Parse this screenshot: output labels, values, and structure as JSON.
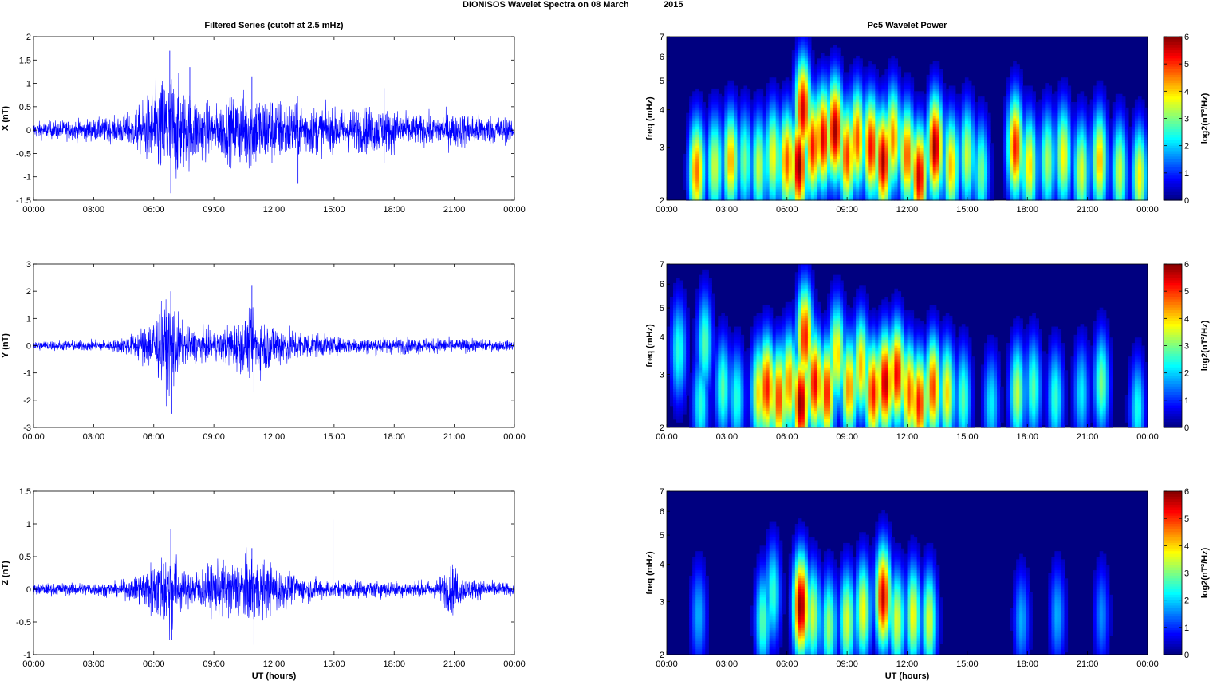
{
  "figure": {
    "title_left": "DIONISOS Wavelet Spectra on 08 March",
    "title_right": "2015"
  },
  "chart_data": [
    {
      "type": "line",
      "panel": "X time series",
      "title": "Filtered Series (cutoff at 2.5 mHz)",
      "ylabel": "X (nT)",
      "xlabel": "",
      "xlim": [
        0,
        24
      ],
      "ylim": [
        -1.5,
        2
      ],
      "xticks": [
        "00:00",
        "03:00",
        "06:00",
        "09:00",
        "12:00",
        "15:00",
        "18:00",
        "21:00",
        "00:00"
      ],
      "yticks": [
        "-1.5",
        "-1",
        "-0.5",
        "0",
        "0.5",
        "1",
        "1.5",
        "2"
      ],
      "color": "#0000ff",
      "amplitude_envelope": [
        {
          "t": 0,
          "a": 0.2
        },
        {
          "t": 2,
          "a": 0.25
        },
        {
          "t": 4,
          "a": 0.3
        },
        {
          "t": 5,
          "a": 0.45
        },
        {
          "t": 6.8,
          "a": 1.5
        },
        {
          "t": 7.5,
          "a": 1.0
        },
        {
          "t": 9,
          "a": 0.6
        },
        {
          "t": 10.8,
          "a": 1.0
        },
        {
          "t": 13,
          "a": 0.7
        },
        {
          "t": 15,
          "a": 0.5
        },
        {
          "t": 17.5,
          "a": 0.6
        },
        {
          "t": 19,
          "a": 0.35
        },
        {
          "t": 21,
          "a": 0.45
        },
        {
          "t": 24,
          "a": 0.3
        }
      ],
      "spikes": [
        {
          "t": 6.8,
          "y": 1.7
        },
        {
          "t": 6.85,
          "y": -1.35
        },
        {
          "t": 7.8,
          "y": 1.35
        },
        {
          "t": 10.9,
          "y": 1.15
        },
        {
          "t": 13.2,
          "y": -1.15
        },
        {
          "t": 17.5,
          "y": 0.9
        },
        {
          "t": 17.5,
          "y": -0.7
        }
      ]
    },
    {
      "type": "line",
      "panel": "Y time series",
      "title": "",
      "ylabel": "Y (nT)",
      "xlabel": "",
      "xlim": [
        0,
        24
      ],
      "ylim": [
        -3,
        3
      ],
      "xticks": [
        "00:00",
        "03:00",
        "06:00",
        "09:00",
        "12:00",
        "15:00",
        "18:00",
        "21:00",
        "00:00"
      ],
      "yticks": [
        "-3",
        "-2",
        "-1",
        "0",
        "1",
        "2",
        "3"
      ],
      "color": "#0000ff",
      "amplitude_envelope": [
        {
          "t": 0,
          "a": 0.2
        },
        {
          "t": 4,
          "a": 0.25
        },
        {
          "t": 5,
          "a": 0.5
        },
        {
          "t": 6.9,
          "a": 2.0
        },
        {
          "t": 7.5,
          "a": 0.8
        },
        {
          "t": 9,
          "a": 0.6
        },
        {
          "t": 10.9,
          "a": 1.3
        },
        {
          "t": 13,
          "a": 0.7
        },
        {
          "t": 15,
          "a": 0.35
        },
        {
          "t": 18,
          "a": 0.35
        },
        {
          "t": 21,
          "a": 0.3
        },
        {
          "t": 24,
          "a": 0.2
        }
      ],
      "spikes": [
        {
          "t": 6.85,
          "y": 2.0
        },
        {
          "t": 6.9,
          "y": -2.5
        },
        {
          "t": 10.9,
          "y": 2.2
        },
        {
          "t": 11.0,
          "y": -1.7
        }
      ]
    },
    {
      "type": "line",
      "panel": "Z time series",
      "title": "",
      "ylabel": "Z (nT)",
      "xlabel": "UT (hours)",
      "xlim": [
        0,
        24
      ],
      "ylim": [
        -1,
        1.5
      ],
      "xticks": [
        "00:00",
        "03:00",
        "06:00",
        "09:00",
        "12:00",
        "15:00",
        "18:00",
        "21:00",
        "00:00"
      ],
      "yticks": [
        "-1",
        "-0.5",
        "0",
        "0.5",
        "1",
        "1.5"
      ],
      "color": "#0000ff",
      "amplitude_envelope": [
        {
          "t": 0,
          "a": 0.1
        },
        {
          "t": 4,
          "a": 0.12
        },
        {
          "t": 5,
          "a": 0.2
        },
        {
          "t": 6.9,
          "a": 0.8
        },
        {
          "t": 7.5,
          "a": 0.3
        },
        {
          "t": 10.9,
          "a": 0.6
        },
        {
          "t": 13,
          "a": 0.25
        },
        {
          "t": 15,
          "a": 0.15
        },
        {
          "t": 20,
          "a": 0.15
        },
        {
          "t": 20.9,
          "a": 0.45
        },
        {
          "t": 21.5,
          "a": 0.2
        },
        {
          "t": 24,
          "a": 0.1
        }
      ],
      "spikes": [
        {
          "t": 6.85,
          "y": 0.92
        },
        {
          "t": 6.9,
          "y": -0.78
        },
        {
          "t": 10.9,
          "y": 0.63
        },
        {
          "t": 11.0,
          "y": -0.85
        },
        {
          "t": 14.95,
          "y": 1.07
        }
      ]
    },
    {
      "type": "heatmap",
      "panel": "X wavelet power",
      "title": "Pc5 Wavelet Power",
      "ylabel": "freq (mHz)",
      "xlabel": "",
      "xlim": [
        0,
        24
      ],
      "ylim": [
        2,
        7
      ],
      "y_scale": "log",
      "xticks": [
        "00:00",
        "03:00",
        "06:00",
        "09:00",
        "12:00",
        "15:00",
        "18:00",
        "21:00",
        "00:00"
      ],
      "yticks": [
        "2",
        "3",
        "4",
        "5",
        "6",
        "7"
      ],
      "colorbar": {
        "label": "log2(nT²/Hz)",
        "range": [
          0,
          6
        ],
        "ticks": [
          "0",
          "1",
          "2",
          "3",
          "4",
          "5",
          "6"
        ],
        "colormap": "jet"
      },
      "blobs": [
        {
          "t": 1.5,
          "f": 2.5,
          "p": 4.6
        },
        {
          "t": 2.4,
          "f": 2.6,
          "p": 3.5
        },
        {
          "t": 3.2,
          "f": 2.7,
          "p": 4.3
        },
        {
          "t": 3.9,
          "f": 2.7,
          "p": 3.0
        },
        {
          "t": 4.6,
          "f": 2.6,
          "p": 3.5
        },
        {
          "t": 5.3,
          "f": 2.8,
          "p": 3.8
        },
        {
          "t": 6.0,
          "f": 2.7,
          "p": 4.8
        },
        {
          "t": 6.6,
          "f": 2.6,
          "p": 6.0
        },
        {
          "t": 6.8,
          "f": 4.0,
          "p": 5.5
        },
        {
          "t": 7.3,
          "f": 3.0,
          "p": 5.2
        },
        {
          "t": 7.8,
          "f": 3.2,
          "p": 5.5
        },
        {
          "t": 8.4,
          "f": 3.4,
          "p": 5.8
        },
        {
          "t": 9.0,
          "f": 2.8,
          "p": 5.0
        },
        {
          "t": 9.5,
          "f": 3.2,
          "p": 4.8
        },
        {
          "t": 10.2,
          "f": 3.0,
          "p": 5.3
        },
        {
          "t": 10.8,
          "f": 2.7,
          "p": 5.8
        },
        {
          "t": 11.3,
          "f": 3.2,
          "p": 4.5
        },
        {
          "t": 12.0,
          "f": 2.8,
          "p": 4.8
        },
        {
          "t": 12.6,
          "f": 2.4,
          "p": 5.6
        },
        {
          "t": 13.4,
          "f": 3.0,
          "p": 5.9
        },
        {
          "t": 14.2,
          "f": 2.6,
          "p": 4.2
        },
        {
          "t": 15.0,
          "f": 2.8,
          "p": 3.5
        },
        {
          "t": 15.7,
          "f": 2.5,
          "p": 3.0
        },
        {
          "t": 17.4,
          "f": 3.0,
          "p": 5.2
        },
        {
          "t": 18.1,
          "f": 2.6,
          "p": 4.0
        },
        {
          "t": 19.0,
          "f": 2.7,
          "p": 3.3
        },
        {
          "t": 19.8,
          "f": 2.8,
          "p": 3.8
        },
        {
          "t": 20.7,
          "f": 2.5,
          "p": 3.6
        },
        {
          "t": 21.6,
          "f": 2.7,
          "p": 4.2
        },
        {
          "t": 22.6,
          "f": 2.5,
          "p": 3.5
        },
        {
          "t": 23.6,
          "f": 2.4,
          "p": 3.8
        }
      ]
    },
    {
      "type": "heatmap",
      "panel": "Y wavelet power",
      "title": "",
      "ylabel": "freq (mHz)",
      "xlabel": "",
      "xlim": [
        0,
        24
      ],
      "ylim": [
        2,
        7
      ],
      "y_scale": "log",
      "xticks": [
        "00:00",
        "03:00",
        "06:00",
        "09:00",
        "12:00",
        "15:00",
        "18:00",
        "21:00",
        "00:00"
      ],
      "yticks": [
        "2",
        "3",
        "4",
        "5",
        "6",
        "7"
      ],
      "colorbar": {
        "label": "log2(nT²/Hz)",
        "range": [
          0,
          6
        ],
        "ticks": [
          "0",
          "1",
          "2",
          "3",
          "4",
          "5",
          "6"
        ],
        "colormap": "jet"
      },
      "blobs": [
        {
          "t": 0.6,
          "f": 3.6,
          "p": 2.5
        },
        {
          "t": 1.7,
          "f": 2.4,
          "p": 2.5
        },
        {
          "t": 1.9,
          "f": 3.8,
          "p": 2.8
        },
        {
          "t": 2.8,
          "f": 2.7,
          "p": 2.8
        },
        {
          "t": 3.5,
          "f": 2.5,
          "p": 2.5
        },
        {
          "t": 4.6,
          "f": 2.6,
          "p": 4.0
        },
        {
          "t": 5.0,
          "f": 2.7,
          "p": 5.2
        },
        {
          "t": 5.6,
          "f": 2.5,
          "p": 5.0
        },
        {
          "t": 6.1,
          "f": 2.8,
          "p": 4.5
        },
        {
          "t": 6.7,
          "f": 2.4,
          "p": 6.0
        },
        {
          "t": 6.9,
          "f": 4.0,
          "p": 5.2
        },
        {
          "t": 7.4,
          "f": 2.8,
          "p": 5.4
        },
        {
          "t": 8.0,
          "f": 2.6,
          "p": 5.2
        },
        {
          "t": 8.5,
          "f": 3.5,
          "p": 4.0
        },
        {
          "t": 9.1,
          "f": 2.7,
          "p": 4.5
        },
        {
          "t": 9.7,
          "f": 3.2,
          "p": 4.2
        },
        {
          "t": 10.3,
          "f": 2.6,
          "p": 5.2
        },
        {
          "t": 10.9,
          "f": 2.8,
          "p": 5.7
        },
        {
          "t": 11.5,
          "f": 3.0,
          "p": 5.4
        },
        {
          "t": 12.1,
          "f": 2.6,
          "p": 4.8
        },
        {
          "t": 12.6,
          "f": 2.4,
          "p": 5.2
        },
        {
          "t": 13.3,
          "f": 2.7,
          "p": 5.0
        },
        {
          "t": 14.0,
          "f": 2.6,
          "p": 4.0
        },
        {
          "t": 14.8,
          "f": 2.5,
          "p": 2.8
        },
        {
          "t": 16.2,
          "f": 2.4,
          "p": 2.2
        },
        {
          "t": 17.5,
          "f": 2.6,
          "p": 3.4
        },
        {
          "t": 18.3,
          "f": 2.7,
          "p": 2.8
        },
        {
          "t": 19.4,
          "f": 2.5,
          "p": 2.6
        },
        {
          "t": 20.7,
          "f": 2.6,
          "p": 2.2
        },
        {
          "t": 21.7,
          "f": 2.8,
          "p": 3.0
        },
        {
          "t": 23.5,
          "f": 2.3,
          "p": 2.4
        }
      ]
    },
    {
      "type": "heatmap",
      "panel": "Z wavelet power",
      "title": "",
      "ylabel": "freq (mHz)",
      "xlabel": "UT (hours)",
      "xlim": [
        0,
        24
      ],
      "ylim": [
        2,
        7
      ],
      "y_scale": "log",
      "xticks": [
        "00:00",
        "03:00",
        "06:00",
        "09:00",
        "12:00",
        "15:00",
        "18:00",
        "21:00",
        "00:00"
      ],
      "yticks": [
        "2",
        "3",
        "4",
        "5",
        "6",
        "7"
      ],
      "colorbar": {
        "label": "log2(nT²/Hz)",
        "range": [
          0,
          6
        ],
        "ticks": [
          "0",
          "1",
          "2",
          "3",
          "4",
          "5",
          "6"
        ],
        "colormap": "jet"
      },
      "blobs": [
        {
          "t": 1.6,
          "f": 2.7,
          "p": 1.8
        },
        {
          "t": 4.8,
          "f": 2.6,
          "p": 2.8
        },
        {
          "t": 5.3,
          "f": 3.2,
          "p": 2.6
        },
        {
          "t": 6.7,
          "f": 2.9,
          "p": 6.0
        },
        {
          "t": 7.3,
          "f": 2.7,
          "p": 3.5
        },
        {
          "t": 8.1,
          "f": 2.5,
          "p": 3.2
        },
        {
          "t": 9.0,
          "f": 2.6,
          "p": 3.6
        },
        {
          "t": 9.8,
          "f": 2.8,
          "p": 3.8
        },
        {
          "t": 10.8,
          "f": 3.1,
          "p": 5.6
        },
        {
          "t": 11.5,
          "f": 2.6,
          "p": 3.6
        },
        {
          "t": 12.3,
          "f": 2.7,
          "p": 3.8
        },
        {
          "t": 13.1,
          "f": 2.6,
          "p": 3.6
        },
        {
          "t": 17.7,
          "f": 2.6,
          "p": 1.8
        },
        {
          "t": 19.5,
          "f": 2.7,
          "p": 1.8
        },
        {
          "t": 21.7,
          "f": 2.7,
          "p": 1.6
        }
      ]
    }
  ]
}
